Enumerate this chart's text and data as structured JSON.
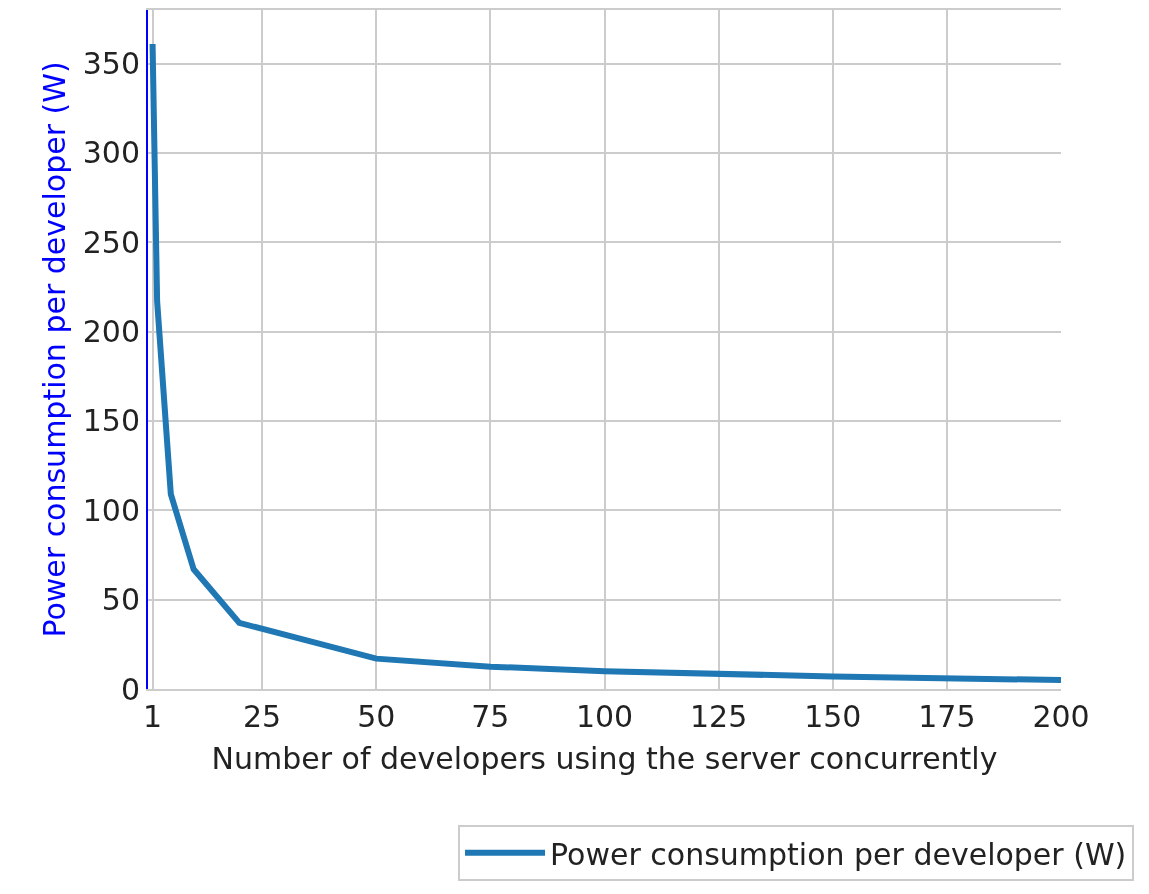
{
  "chart_data": {
    "type": "line",
    "xlabel": "Number of developers using the server concurrently",
    "ylabel": "Power consumption per developer (W)",
    "x": [
      1,
      2,
      5,
      10,
      20,
      50,
      75,
      100,
      150,
      200
    ],
    "series": [
      {
        "name": "Power consumption per developer (W)",
        "color": "#1f77b4",
        "values": [
          361,
          217,
          109,
          67,
          37,
          17,
          12.5,
          10,
          7,
          5
        ]
      }
    ],
    "xlim": [
      0,
      200
    ],
    "xticks": [
      1,
      25,
      50,
      75,
      100,
      125,
      150,
      175,
      200
    ],
    "ylim": [
      0,
      380
    ],
    "yticks": [
      0,
      50,
      100,
      150,
      200,
      250,
      300,
      350
    ],
    "grid": true,
    "legend": "bottom right",
    "marker": "none",
    "line_style": "solid"
  }
}
